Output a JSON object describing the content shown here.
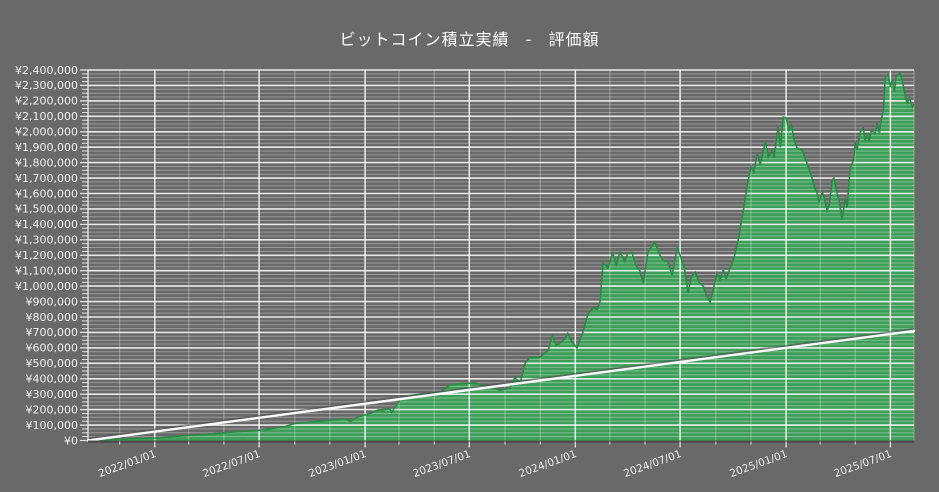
{
  "title": "ビットコイン積立実績 - 評価額",
  "colors": {
    "background": "#696969",
    "area_fill": "#3f9e5a",
    "area_edge": "#2c8a47",
    "investment_line": "#fafafa",
    "investment_line_shadow": "rgba(75,75,75,0.55)",
    "grid_minor": "rgba(255,255,255,0.32)",
    "grid_major": "rgba(255,255,255,0.85)",
    "axis_dark": "#4d4d4d",
    "tick_color": "rgba(255,255,255,0.8)",
    "label_color": "#f0f0f0",
    "title_color": "#ffffff"
  },
  "chart_data": {
    "type": "area",
    "title": "ビットコイン積立実績 - 評価額",
    "xlabel": "",
    "ylabel": "",
    "grid": "on",
    "legend": "none",
    "currency_prefix": "¥",
    "y": {
      "min": 0,
      "max": 2400000,
      "label_step": 100000,
      "minor_step": 25000
    },
    "x_domain": [
      "2021-09-07",
      "2025-08-11"
    ],
    "x_minor_grid_months": 2,
    "x_ticks": [
      {
        "date": "2022-01-01",
        "label": "2022/01/01"
      },
      {
        "date": "2022-07-01",
        "label": "2022/07/01"
      },
      {
        "date": "2023-01-01",
        "label": "2023/01/01"
      },
      {
        "date": "2023-07-01",
        "label": "2023/07/01"
      },
      {
        "date": "2024-01-01",
        "label": "2024/01/01"
      },
      {
        "date": "2024-07-01",
        "label": "2024/07/01"
      },
      {
        "date": "2025-01-01",
        "label": "2025/01/01"
      },
      {
        "date": "2025-07-01",
        "label": "2025/07/01"
      }
    ],
    "series": [
      {
        "name": "評価額",
        "style": "area",
        "points": [
          [
            "2021-09-07",
            0
          ],
          [
            "2021-10-06",
            5000
          ],
          [
            "2021-11-05",
            10000
          ],
          [
            "2021-12-06",
            14000
          ],
          [
            "2022-01-01",
            16000
          ],
          [
            "2022-02-13",
            29000
          ],
          [
            "2022-04-06",
            42000
          ],
          [
            "2022-05-29",
            58000
          ],
          [
            "2022-07-06",
            68000
          ],
          [
            "2022-08-15",
            90000
          ],
          [
            "2022-09-01",
            110000
          ],
          [
            "2022-09-27",
            120000
          ],
          [
            "2022-11-01",
            130000
          ],
          [
            "2022-11-27",
            139000
          ],
          [
            "2022-12-07",
            125000
          ],
          [
            "2022-12-20",
            155000
          ],
          [
            "2023-01-06",
            169000
          ],
          [
            "2023-01-23",
            196000
          ],
          [
            "2023-02-13",
            205000
          ],
          [
            "2023-02-16",
            182000
          ],
          [
            "2023-03-03",
            265000
          ],
          [
            "2023-03-20",
            290000
          ],
          [
            "2023-04-15",
            302000
          ],
          [
            "2023-05-11",
            312000
          ],
          [
            "2023-05-28",
            358000
          ],
          [
            "2023-06-15",
            368000
          ],
          [
            "2023-07-11",
            372000
          ],
          [
            "2023-08-06",
            345000
          ],
          [
            "2023-08-23",
            326000
          ],
          [
            "2023-09-10",
            340000
          ],
          [
            "2023-09-18",
            408000
          ],
          [
            "2023-09-27",
            370000
          ],
          [
            "2023-10-06",
            500000
          ],
          [
            "2023-10-14",
            538000
          ],
          [
            "2023-11-01",
            540000
          ],
          [
            "2023-11-15",
            585000
          ],
          [
            "2023-11-22",
            680000
          ],
          [
            "2023-11-29",
            616000
          ],
          [
            "2023-12-05",
            630000
          ],
          [
            "2023-12-14",
            660000
          ],
          [
            "2023-12-19",
            694000
          ],
          [
            "2023-12-26",
            640000
          ],
          [
            "2024-01-04",
            600000
          ],
          [
            "2024-01-14",
            700000
          ],
          [
            "2024-01-23",
            820000
          ],
          [
            "2024-02-01",
            860000
          ],
          [
            "2024-02-08",
            850000
          ],
          [
            "2024-02-13",
            900000
          ],
          [
            "2024-02-18",
            1150000
          ],
          [
            "2024-02-27",
            1120000
          ],
          [
            "2024-03-06",
            1215000
          ],
          [
            "2024-03-12",
            1140000
          ],
          [
            "2024-03-19",
            1220000
          ],
          [
            "2024-03-27",
            1160000
          ],
          [
            "2024-04-01",
            1210000
          ],
          [
            "2024-04-08",
            1220000
          ],
          [
            "2024-04-15",
            1135000
          ],
          [
            "2024-04-22",
            1100000
          ],
          [
            "2024-04-28",
            1020000
          ],
          [
            "2024-05-06",
            1220000
          ],
          [
            "2024-05-13",
            1260000
          ],
          [
            "2024-05-18",
            1285000
          ],
          [
            "2024-05-27",
            1200000
          ],
          [
            "2024-06-01",
            1170000
          ],
          [
            "2024-06-10",
            1155000
          ],
          [
            "2024-06-17",
            1070000
          ],
          [
            "2024-06-26",
            1250000
          ],
          [
            "2024-07-01",
            1200000
          ],
          [
            "2024-07-08",
            1120000
          ],
          [
            "2024-07-15",
            955000
          ],
          [
            "2024-07-20",
            1060000
          ],
          [
            "2024-07-27",
            1090000
          ],
          [
            "2024-08-03",
            1025000
          ],
          [
            "2024-08-10",
            1000000
          ],
          [
            "2024-08-17",
            930000
          ],
          [
            "2024-08-22",
            895000
          ],
          [
            "2024-08-29",
            1000000
          ],
          [
            "2024-09-03",
            1085000
          ],
          [
            "2024-09-08",
            1040000
          ],
          [
            "2024-09-14",
            1105000
          ],
          [
            "2024-09-19",
            1050000
          ],
          [
            "2024-09-26",
            1120000
          ],
          [
            "2024-10-03",
            1190000
          ],
          [
            "2024-10-10",
            1300000
          ],
          [
            "2024-10-15",
            1410000
          ],
          [
            "2024-10-20",
            1520000
          ],
          [
            "2024-10-25",
            1645000
          ],
          [
            "2024-10-29",
            1720000
          ],
          [
            "2024-11-01",
            1770000
          ],
          [
            "2024-11-06",
            1740000
          ],
          [
            "2024-11-12",
            1860000
          ],
          [
            "2024-11-17",
            1785000
          ],
          [
            "2024-11-26",
            1935000
          ],
          [
            "2024-12-01",
            1835000
          ],
          [
            "2024-12-08",
            1880000
          ],
          [
            "2024-12-11",
            1830000
          ],
          [
            "2024-12-18",
            2030000
          ],
          [
            "2024-12-22",
            1900000
          ],
          [
            "2024-12-27",
            2095000
          ],
          [
            "2025-01-01",
            2090000
          ],
          [
            "2025-01-06",
            2010000
          ],
          [
            "2025-01-10",
            2045000
          ],
          [
            "2025-01-15",
            1945000
          ],
          [
            "2025-01-20",
            1895000
          ],
          [
            "2025-01-29",
            1880000
          ],
          [
            "2025-02-05",
            1810000
          ],
          [
            "2025-02-15",
            1700000
          ],
          [
            "2025-02-19",
            1640000
          ],
          [
            "2025-02-24",
            1600000
          ],
          [
            "2025-02-27",
            1545000
          ],
          [
            "2025-03-05",
            1610000
          ],
          [
            "2025-03-08",
            1575000
          ],
          [
            "2025-03-13",
            1490000
          ],
          [
            "2025-03-17",
            1525000
          ],
          [
            "2025-03-22",
            1690000
          ],
          [
            "2025-03-25",
            1700000
          ],
          [
            "2025-03-31",
            1590000
          ],
          [
            "2025-04-03",
            1555000
          ],
          [
            "2025-04-08",
            1430000
          ],
          [
            "2025-04-14",
            1575000
          ],
          [
            "2025-04-17",
            1510000
          ],
          [
            "2025-04-22",
            1765000
          ],
          [
            "2025-04-28",
            1815000
          ],
          [
            "2025-05-01",
            1935000
          ],
          [
            "2025-05-04",
            1880000
          ],
          [
            "2025-05-10",
            2000000
          ],
          [
            "2025-05-15",
            2025000
          ],
          [
            "2025-05-18",
            1945000
          ],
          [
            "2025-05-22",
            1980000
          ],
          [
            "2025-05-25",
            1935000
          ],
          [
            "2025-05-29",
            2010000
          ],
          [
            "2025-06-01",
            2000000
          ],
          [
            "2025-06-05",
            1990000
          ],
          [
            "2025-06-08",
            2055000
          ],
          [
            "2025-06-12",
            1990000
          ],
          [
            "2025-06-15",
            2075000
          ],
          [
            "2025-06-19",
            2150000
          ],
          [
            "2025-06-22",
            2350000
          ],
          [
            "2025-06-27",
            2370000
          ],
          [
            "2025-07-01",
            2290000
          ],
          [
            "2025-07-04",
            2335000
          ],
          [
            "2025-07-08",
            2260000
          ],
          [
            "2025-07-11",
            2355000
          ],
          [
            "2025-07-18",
            2380000
          ],
          [
            "2025-07-23",
            2305000
          ],
          [
            "2025-07-27",
            2225000
          ],
          [
            "2025-07-30",
            2185000
          ],
          [
            "2025-08-03",
            2220000
          ],
          [
            "2025-08-08",
            2160000
          ],
          [
            "2025-08-11",
            2180000
          ]
        ]
      },
      {
        "name": "line",
        "style": "line",
        "points": [
          [
            "2021-09-07",
            0
          ],
          [
            "2025-08-11",
            710000
          ]
        ]
      }
    ]
  }
}
